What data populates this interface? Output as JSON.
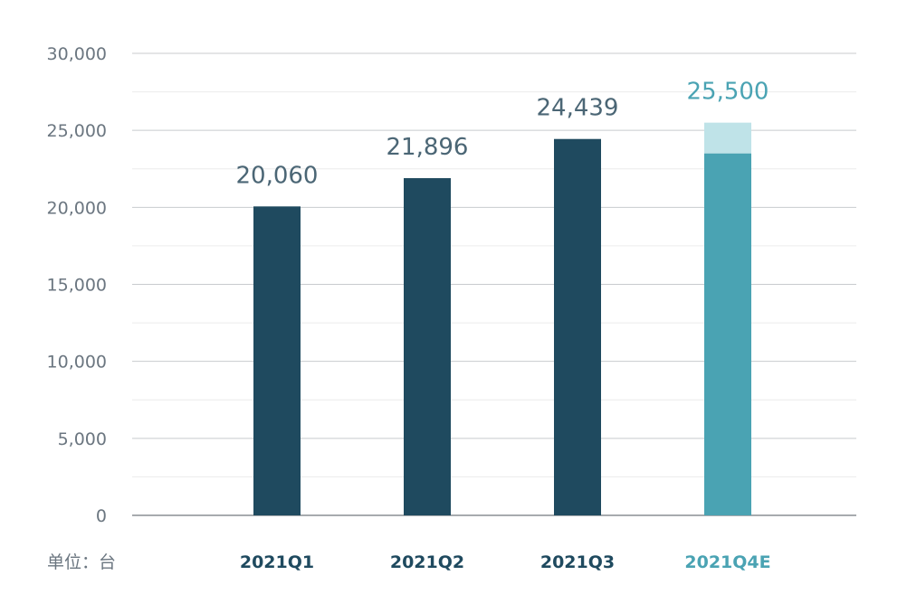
{
  "chart_data": {
    "type": "bar",
    "categories": [
      "2021Q1",
      "2021Q2",
      "2021Q3",
      "2021Q4E"
    ],
    "values": [
      20060,
      21896,
      24439,
      25500
    ],
    "data_labels": [
      "20,060",
      "21,896",
      "24,439",
      "25,500"
    ],
    "q4_base_value": 23500,
    "y_ticks": [
      "0",
      "5,000",
      "10,000",
      "15,000",
      "20,000",
      "25,000",
      "30,000"
    ],
    "ylim": [
      0,
      30000
    ],
    "unit_label": "单位：台",
    "grid": true,
    "colors": {
      "actual_bar": "#1f4a5f",
      "estimate_bar": "#4aa3b3",
      "estimate_upper": "#bfe3e8",
      "actual_text": "#1f4a5f",
      "estimate_text": "#4aa3b3",
      "label_text": "#4b6675"
    }
  }
}
